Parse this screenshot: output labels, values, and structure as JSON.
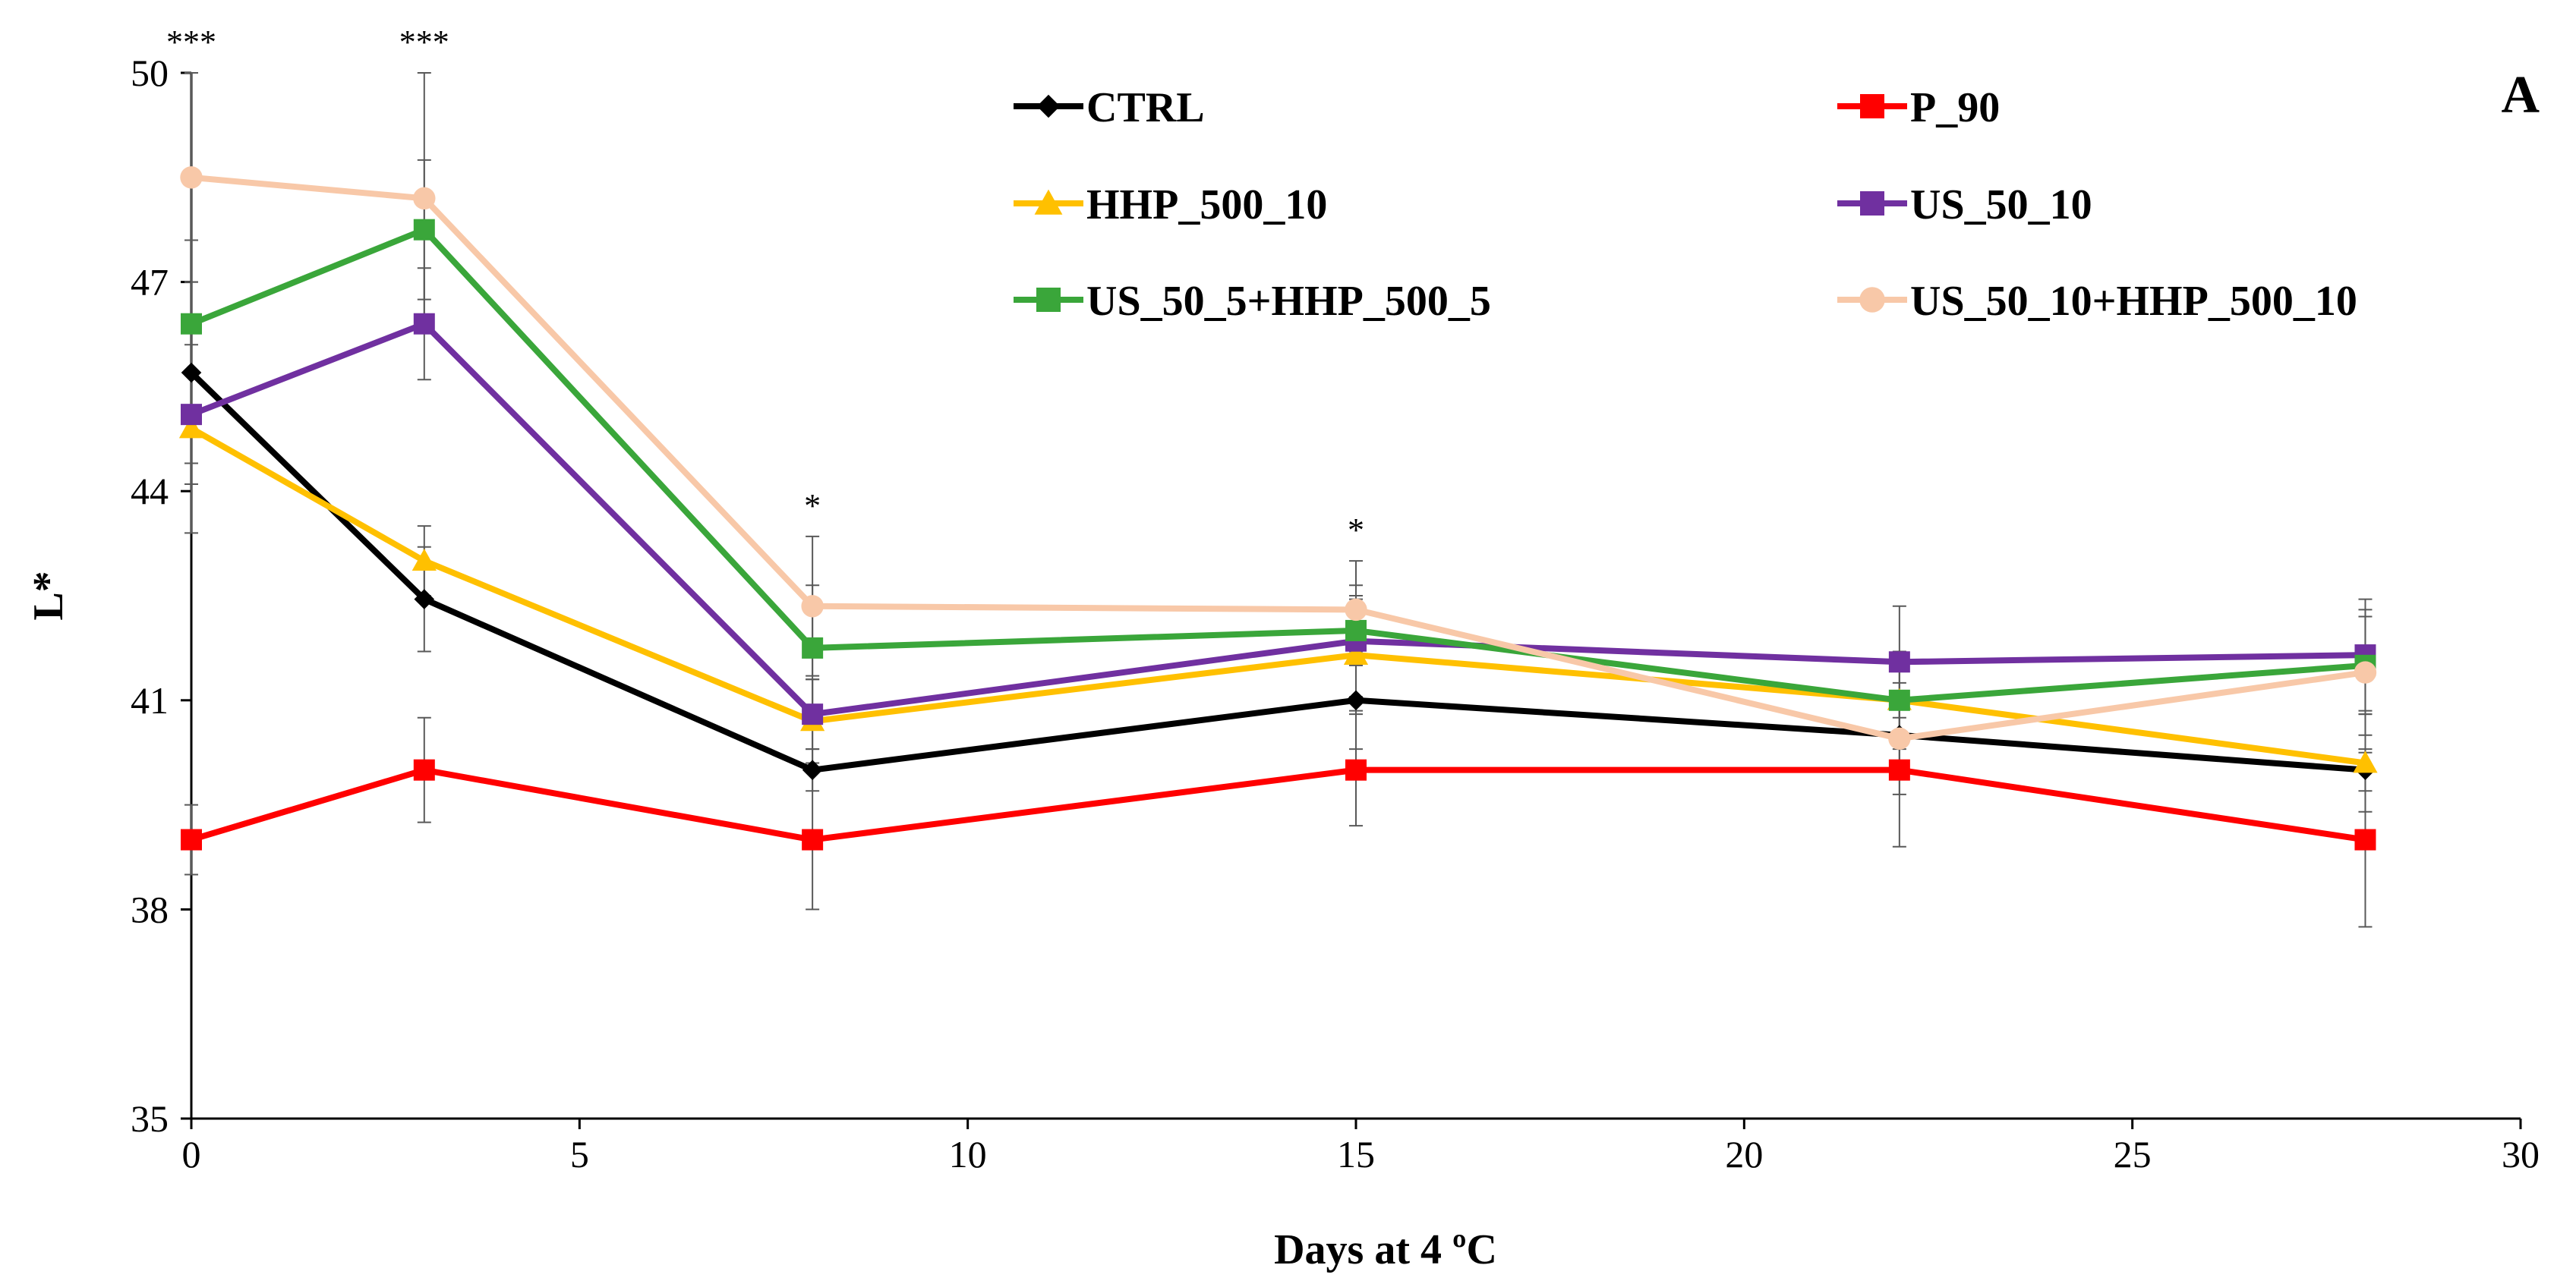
{
  "chart_data": {
    "type": "line",
    "panel_label": "A",
    "xlabel": "Days at 4 ºC",
    "ylabel": "L*",
    "xlim": [
      0,
      30
    ],
    "ylim": [
      35,
      50
    ],
    "xticks": [
      0,
      5,
      10,
      15,
      20,
      25,
      30
    ],
    "yticks": [
      35,
      38,
      41,
      44,
      47,
      50
    ],
    "x": [
      0,
      3,
      8,
      15,
      22,
      28
    ],
    "significance": [
      {
        "x": 0,
        "label": "***"
      },
      {
        "x": 3,
        "label": "***"
      },
      {
        "x": 8,
        "label": "*"
      },
      {
        "x": 15,
        "label": "*"
      }
    ],
    "series": [
      {
        "name": "CTRL",
        "color": "#000000",
        "marker": "diamond",
        "values": [
          45.7,
          42.45,
          40.0,
          41.0,
          40.5,
          40.0
        ],
        "errors": [
          1.3,
          0.75,
          0.3,
          0.7,
          0.5,
          0.3
        ]
      },
      {
        "name": "P_90",
        "color": "#ff0000",
        "marker": "square",
        "values": [
          39.0,
          40.0,
          39.0,
          40.0,
          40.0,
          39.0
        ],
        "errors": [
          0.5,
          0.75,
          1.0,
          0.8,
          1.1,
          1.25
        ]
      },
      {
        "name": "HHP_500_10",
        "color": "#ffc000",
        "marker": "triangle",
        "values": [
          44.9,
          43.0,
          40.7,
          41.65,
          41.0,
          40.1
        ],
        "errors": [
          1.5,
          0.5,
          0.6,
          0.8,
          0.7,
          0.7
        ]
      },
      {
        "name": "US_50_10",
        "color": "#7030a0",
        "marker": "square",
        "values": [
          45.1,
          46.4,
          40.8,
          41.85,
          41.55,
          41.65
        ],
        "errors": [
          1.0,
          0.8,
          0.5,
          0.8,
          0.8,
          0.8
        ]
      },
      {
        "name": "US_50_5+HHP_500_5",
        "color": "#3aa63a",
        "marker": "square",
        "values": [
          46.4,
          47.75,
          41.75,
          42.0,
          41.0,
          41.5
        ],
        "errors": [
          1.2,
          1.0,
          0.9,
          0.5,
          0.6,
          0.7
        ]
      },
      {
        "name": "US_50_10+HHP_500_10",
        "color": "#f8c8a8",
        "marker": "circle",
        "values": [
          48.5,
          48.2,
          42.35,
          42.3,
          40.45,
          41.4
        ],
        "errors": [
          1.5,
          1.8,
          1.0,
          0.7,
          0.8,
          0.9
        ]
      }
    ],
    "legend_position": "top-right"
  }
}
